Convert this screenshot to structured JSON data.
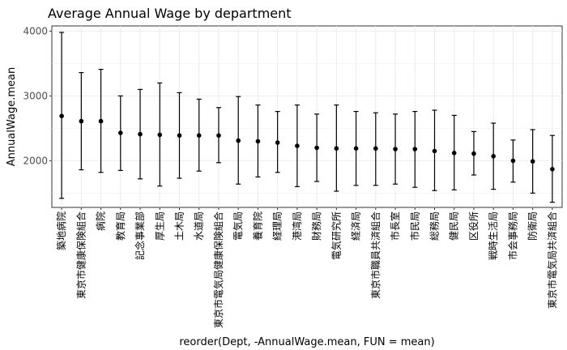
{
  "chart_data": {
    "type": "errorbar",
    "title": "Average Annual Wage by department",
    "xlabel": "reorder(Dept, -AnnualWage.mean, FUN = mean)",
    "ylabel": "AnnualWage.mean",
    "yticks": [
      2000,
      3000,
      4000
    ],
    "ytick_labels": [
      "2000",
      "3000",
      "4000"
    ],
    "ylim": [
      1280,
      4080
    ],
    "grid": true,
    "categories": [
      "築地病院",
      "東京市健康保険組合",
      "病院",
      "教育局",
      "記念事業部",
      "厚生局",
      "土木局",
      "水道局",
      "東京市電気局健康保険組合",
      "電気局",
      "養育院",
      "経理局",
      "港湾局",
      "財務局",
      "電気研究所",
      "経済局",
      "東京市職員共済組合",
      "市長室",
      "市民局",
      "総務局",
      "健民局",
      "区役所",
      "戦時生活局",
      "市会事務局",
      "防衛局",
      "東京市電気局共済組合"
    ],
    "mean": [
      2690,
      2610,
      2610,
      2430,
      2410,
      2400,
      2390,
      2390,
      2390,
      2310,
      2300,
      2280,
      2230,
      2200,
      2190,
      2190,
      2190,
      2180,
      2180,
      2150,
      2120,
      2110,
      2070,
      2000,
      1990,
      1870
    ],
    "upper": [
      3980,
      3360,
      3410,
      3000,
      3100,
      3200,
      3050,
      2950,
      2820,
      2990,
      2860,
      2760,
      2860,
      2720,
      2860,
      2760,
      2740,
      2720,
      2760,
      2780,
      2700,
      2450,
      2580,
      2320,
      2480,
      2390
    ],
    "lower": [
      1420,
      1860,
      1820,
      1850,
      1720,
      1610,
      1730,
      1840,
      1970,
      1640,
      1750,
      1820,
      1600,
      1680,
      1530,
      1620,
      1620,
      1640,
      1590,
      1540,
      1550,
      1780,
      1560,
      1670,
      1500,
      1360
    ]
  }
}
